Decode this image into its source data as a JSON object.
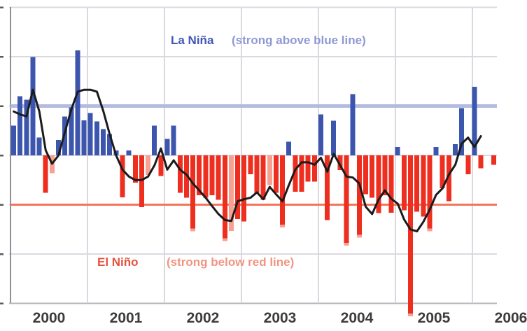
{
  "chart_data": {
    "type": "bar",
    "description": "Southern Oscillation Index style chart: 4-weekly bars (blue positive / red negative) with 30-day smoothed black line, 2000 to early 2006",
    "x_labels": [
      "2000",
      "2001",
      "2002",
      "2003",
      "2004",
      "2005",
      "2006"
    ],
    "ylim": [
      -30,
      30
    ],
    "grid_step_y": 10,
    "grid": true,
    "thresholds": {
      "la_nina_line_value": 10,
      "el_nino_line_value": -10
    },
    "bars": [
      6.0,
      12.0,
      11.3,
      19.9,
      3.6,
      -7.6,
      -3.6,
      3.1,
      7.9,
      9.7,
      21.3,
      7.1,
      8.6,
      6.9,
      5.3,
      4.3,
      1.0,
      -8.5,
      1.0,
      -5.5,
      -10.5,
      -4.0,
      6.0,
      -4.2,
      3.3,
      6.0,
      -7.6,
      -8.6,
      -15.4,
      -8.1,
      -8.6,
      -8.1,
      -9.0,
      -17.4,
      -15.3,
      -12.9,
      -13.4,
      -3.8,
      -7.6,
      -9.0,
      -6.0,
      -7.6,
      -14.6,
      2.8,
      -7.4,
      -7.4,
      -5.3,
      -5.3,
      8.3,
      -13.1,
      7.0,
      -3.0,
      -18.3,
      12.4,
      -16.7,
      -7.9,
      -8.6,
      -11.7,
      -8.1,
      -11.6,
      1.7,
      -11.1,
      -32.6,
      -11.4,
      -12.4,
      -15.4,
      1.7,
      -6.7,
      -9.3,
      2.3,
      9.6,
      -3.8,
      13.9,
      -2.6,
      0,
      -1.9
    ],
    "light_bar_indices": [
      6,
      21,
      34,
      40
    ],
    "smoothed_line": [
      8.9,
      8.3,
      7.9,
      13.3,
      8.9,
      1.0,
      -1.7,
      0.0,
      4.7,
      9.3,
      12.9,
      13.3,
      13.3,
      12.9,
      9.0,
      4.3,
      0.0,
      -2.9,
      -4.3,
      -5.0,
      -5.0,
      -4.3,
      -2.0,
      1.4,
      -2.9,
      -1.0,
      -2.9,
      -3.9,
      -5.7,
      -7.1,
      -8.6,
      -10.3,
      -11.9,
      -13.1,
      -13.3,
      -9.3,
      -8.9,
      -8.6,
      -7.5,
      -8.9,
      -6.4,
      -7.9,
      -9.3,
      -6.0,
      -2.9,
      -1.4,
      -1.4,
      -1.9,
      -0.5,
      -3.3,
      0.3,
      -2.0,
      -4.3,
      -4.5,
      -5.7,
      -10.4,
      -11.9,
      -9.0,
      -7.1,
      -8.8,
      -9.8,
      -13.0,
      -15.0,
      -15.4,
      -13.5,
      -11.0,
      -8.0,
      -6.7,
      -3.9,
      -1.9,
      2.4,
      3.6,
      1.7,
      3.9
    ],
    "annotations": {
      "la_nina_label": "La Niña",
      "la_nina_note": "(strong above blue line)",
      "el_nino_label": "El Niño",
      "el_nino_note": "(strong below red line)"
    },
    "legend_position": "none",
    "colors": {
      "bar_positive": "#3c56ae",
      "bar_negative": "#ee2e1f",
      "bar_negative_light": "#f7a193",
      "la_nina_line": "#b3bbdf",
      "el_nino_line": "#f3755a",
      "smooth_line": "#1b1b1b",
      "grid": "#dcd8e0",
      "bottom_border": "#b6b2ba",
      "axis": "#8e8e96",
      "tick": "#5a5a5a",
      "label_blue": "#4156b4",
      "label_blue_light": "#8f99d4",
      "label_red": "#e6523e",
      "label_red_light": "#f29482",
      "x_label_color": "#3c3c3c"
    }
  }
}
